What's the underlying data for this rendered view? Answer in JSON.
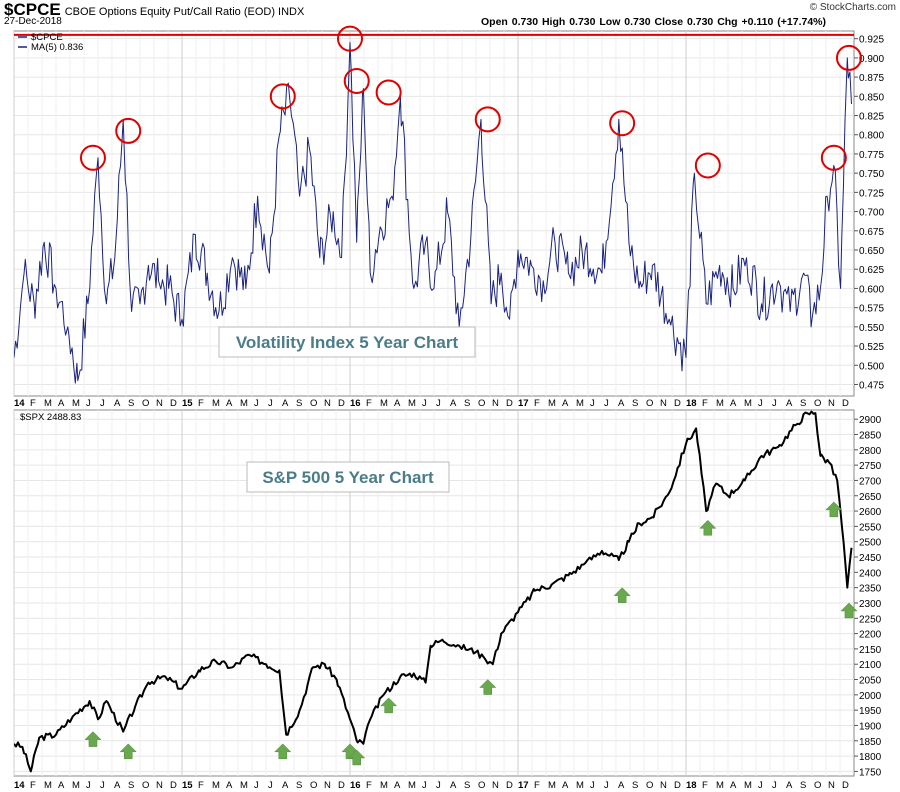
{
  "header": {
    "symbol": "$CPCE",
    "description": "CBOE Options Equity Put/Call Ratio (EOD)  INDX",
    "date": "27-Dec-2018",
    "ohlc": "Open 0.730  High 0.730  Low 0.730  Close 0.730  Chg +0.110 (+17.74%)",
    "watermark": "© StockCharts.com"
  },
  "colors": {
    "cpce_line": "#1a237e",
    "spx_line": "#000000",
    "resistance_line": "#e00000",
    "circle": "#e00000",
    "arrow": "#6aa84f",
    "annotation_text": "#4a7c8a"
  },
  "chart_data": [
    {
      "type": "line",
      "legend": [
        "$CPCE",
        "MA(5) 0.836"
      ],
      "annotation": "Volatility Index 5 Year Chart",
      "ylim": [
        0.46,
        0.935
      ],
      "y_ticks": [
        0.475,
        0.5,
        0.525,
        0.55,
        0.575,
        0.6,
        0.625,
        0.65,
        0.675,
        0.7,
        0.725,
        0.75,
        0.775,
        0.8,
        0.825,
        0.85,
        0.875,
        0.9,
        0.925
      ],
      "y_tick_labels": [
        "0.475",
        "0.500",
        "0.525",
        "0.550",
        "0.575",
        "0.600",
        "0.625",
        "0.650",
        "0.675",
        "0.700",
        "0.725",
        "0.750",
        "0.775",
        "0.800",
        "0.825",
        "0.850",
        "0.875",
        "0.900",
        "0.925"
      ],
      "resistance_level": 0.93,
      "x": [
        2014.0,
        2014.06,
        2014.12,
        2014.18,
        2014.25,
        2014.32,
        2014.38,
        2014.44,
        2014.5,
        2014.55,
        2014.6,
        2014.65,
        2014.7,
        2014.75,
        2014.8,
        2014.86,
        2014.92,
        2015.0,
        2015.08,
        2015.15,
        2015.22,
        2015.3,
        2015.38,
        2015.45,
        2015.52,
        2015.58,
        2015.64,
        2015.7,
        2015.76,
        2015.82,
        2015.9,
        2015.95,
        2016.0,
        2016.04,
        2016.08,
        2016.12,
        2016.18,
        2016.25,
        2016.3,
        2016.38,
        2016.45,
        2016.5,
        2016.58,
        2016.65,
        2016.72,
        2016.78,
        2016.84,
        2016.9,
        2016.95,
        2017.0,
        2017.08,
        2017.15,
        2017.22,
        2017.3,
        2017.4,
        2017.5,
        2017.6,
        2017.66,
        2017.72,
        2017.8,
        2017.9,
        2018.0,
        2018.05,
        2018.12,
        2018.2,
        2018.28,
        2018.36,
        2018.45,
        2018.55,
        2018.62,
        2018.7,
        2018.75,
        2018.8,
        2018.84,
        2018.88,
        2018.92,
        2018.96,
        2018.985
      ],
      "values": [
        0.51,
        0.62,
        0.58,
        0.66,
        0.6,
        0.55,
        0.48,
        0.58,
        0.77,
        0.58,
        0.64,
        0.82,
        0.57,
        0.58,
        0.63,
        0.61,
        0.6,
        0.56,
        0.67,
        0.62,
        0.57,
        0.64,
        0.6,
        0.72,
        0.62,
        0.8,
        0.85,
        0.72,
        0.78,
        0.64,
        0.7,
        0.64,
        0.92,
        0.66,
        0.86,
        0.62,
        0.68,
        0.72,
        0.85,
        0.6,
        0.66,
        0.6,
        0.7,
        0.55,
        0.67,
        0.82,
        0.58,
        0.62,
        0.56,
        0.65,
        0.63,
        0.61,
        0.66,
        0.62,
        0.65,
        0.62,
        0.82,
        0.66,
        0.6,
        0.63,
        0.56,
        0.51,
        0.75,
        0.58,
        0.63,
        0.6,
        0.64,
        0.58,
        0.61,
        0.57,
        0.62,
        0.56,
        0.6,
        0.72,
        0.76,
        0.6,
        0.9,
        0.84
      ],
      "circled_peaks": [
        [
          2014.47,
          0.77
        ],
        [
          2014.68,
          0.805
        ],
        [
          2015.6,
          0.85
        ],
        [
          2016.0,
          0.925
        ],
        [
          2016.04,
          0.87
        ],
        [
          2016.23,
          0.855
        ],
        [
          2016.82,
          0.82
        ],
        [
          2017.62,
          0.815
        ],
        [
          2018.13,
          0.76
        ],
        [
          2018.88,
          0.77
        ],
        [
          2018.97,
          0.9
        ]
      ]
    },
    {
      "type": "line",
      "legend": [
        "$SPX 2488.83"
      ],
      "annotation": "S&P 500 5 Year Chart",
      "ylim": [
        1735,
        2930
      ],
      "y_ticks": [
        1750,
        1800,
        1850,
        1900,
        1950,
        2000,
        2050,
        2100,
        2150,
        2200,
        2250,
        2300,
        2350,
        2400,
        2450,
        2500,
        2550,
        2600,
        2650,
        2700,
        2750,
        2800,
        2850,
        2900
      ],
      "y_tick_labels": [
        "1750",
        "1800",
        "1850",
        "1900",
        "1950",
        "2000",
        "2050",
        "2100",
        "2150",
        "2200",
        "2250",
        "2300",
        "2350",
        "2400",
        "2450",
        "2500",
        "2550",
        "2600",
        "2650",
        "2700",
        "2750",
        "2800",
        "2850",
        "2900"
      ],
      "x": [
        2014.0,
        2014.05,
        2014.1,
        2014.15,
        2014.25,
        2014.35,
        2014.45,
        2014.5,
        2014.55,
        2014.65,
        2014.72,
        2014.8,
        2014.9,
        2015.0,
        2015.1,
        2015.2,
        2015.3,
        2015.4,
        2015.5,
        2015.58,
        2015.62,
        2015.7,
        2015.78,
        2015.85,
        2015.92,
        2016.0,
        2016.04,
        2016.08,
        2016.12,
        2016.2,
        2016.3,
        2016.38,
        2016.45,
        2016.48,
        2016.55,
        2016.65,
        2016.75,
        2016.8,
        2016.85,
        2016.9,
        2017.0,
        2017.1,
        2017.2,
        2017.3,
        2017.4,
        2017.5,
        2017.6,
        2017.66,
        2017.72,
        2017.8,
        2017.9,
        2018.0,
        2018.06,
        2018.12,
        2018.18,
        2018.25,
        2018.35,
        2018.45,
        2018.55,
        2018.65,
        2018.72,
        2018.77,
        2018.8,
        2018.85,
        2018.9,
        2018.93,
        2018.96,
        2018.985
      ],
      "values": [
        1840,
        1830,
        1750,
        1860,
        1870,
        1930,
        1980,
        1920,
        1980,
        1880,
        1960,
        2040,
        2060,
        2020,
        2080,
        2110,
        2090,
        2130,
        2100,
        2080,
        1870,
        1950,
        2090,
        2100,
        2050,
        1920,
        1850,
        1840,
        1920,
        2000,
        2060,
        2070,
        2040,
        2160,
        2180,
        2160,
        2140,
        2120,
        2100,
        2200,
        2270,
        2340,
        2360,
        2390,
        2430,
        2470,
        2440,
        2500,
        2560,
        2580,
        2660,
        2820,
        2870,
        2600,
        2690,
        2650,
        2700,
        2780,
        2810,
        2880,
        2920,
        2920,
        2780,
        2760,
        2700,
        2540,
        2350,
        2480
      ],
      "arrows": [
        [
          2014.47,
          1880
        ],
        [
          2014.68,
          1840
        ],
        [
          2015.6,
          1840
        ],
        [
          2016.0,
          1840
        ],
        [
          2016.04,
          1820
        ],
        [
          2016.23,
          1990
        ],
        [
          2016.82,
          2050
        ],
        [
          2017.62,
          2350
        ],
        [
          2018.13,
          2570
        ],
        [
          2018.88,
          2630
        ],
        [
          2018.97,
          2300
        ]
      ]
    }
  ],
  "x_axis": {
    "labels": [
      {
        "t": "14",
        "x": 2014.0,
        "bold": true
      },
      {
        "t": "F",
        "x": 2014.083
      },
      {
        "t": "M",
        "x": 2014.167
      },
      {
        "t": "A",
        "x": 2014.25
      },
      {
        "t": "M",
        "x": 2014.333
      },
      {
        "t": "J",
        "x": 2014.417
      },
      {
        "t": "J",
        "x": 2014.5
      },
      {
        "t": "A",
        "x": 2014.583
      },
      {
        "t": "S",
        "x": 2014.667
      },
      {
        "t": "O",
        "x": 2014.75
      },
      {
        "t": "N",
        "x": 2014.833
      },
      {
        "t": "D",
        "x": 2014.917
      },
      {
        "t": "15",
        "x": 2015.0,
        "bold": true
      },
      {
        "t": "F",
        "x": 2015.083
      },
      {
        "t": "M",
        "x": 2015.167
      },
      {
        "t": "A",
        "x": 2015.25
      },
      {
        "t": "M",
        "x": 2015.333
      },
      {
        "t": "J",
        "x": 2015.417
      },
      {
        "t": "J",
        "x": 2015.5
      },
      {
        "t": "A",
        "x": 2015.583
      },
      {
        "t": "S",
        "x": 2015.667
      },
      {
        "t": "O",
        "x": 2015.75
      },
      {
        "t": "N",
        "x": 2015.833
      },
      {
        "t": "D",
        "x": 2015.917
      },
      {
        "t": "16",
        "x": 2016.0,
        "bold": true
      },
      {
        "t": "F",
        "x": 2016.083
      },
      {
        "t": "M",
        "x": 2016.167
      },
      {
        "t": "A",
        "x": 2016.25
      },
      {
        "t": "M",
        "x": 2016.333
      },
      {
        "t": "J",
        "x": 2016.417
      },
      {
        "t": "J",
        "x": 2016.5
      },
      {
        "t": "A",
        "x": 2016.583
      },
      {
        "t": "S",
        "x": 2016.667
      },
      {
        "t": "O",
        "x": 2016.75
      },
      {
        "t": "N",
        "x": 2016.833
      },
      {
        "t": "D",
        "x": 2016.917
      },
      {
        "t": "17",
        "x": 2017.0,
        "bold": true
      },
      {
        "t": "F",
        "x": 2017.083
      },
      {
        "t": "M",
        "x": 2017.167
      },
      {
        "t": "A",
        "x": 2017.25
      },
      {
        "t": "M",
        "x": 2017.333
      },
      {
        "t": "J",
        "x": 2017.417
      },
      {
        "t": "J",
        "x": 2017.5
      },
      {
        "t": "A",
        "x": 2017.583
      },
      {
        "t": "S",
        "x": 2017.667
      },
      {
        "t": "O",
        "x": 2017.75
      },
      {
        "t": "N",
        "x": 2017.833
      },
      {
        "t": "D",
        "x": 2017.917
      },
      {
        "t": "18",
        "x": 2018.0,
        "bold": true
      },
      {
        "t": "F",
        "x": 2018.083
      },
      {
        "t": "M",
        "x": 2018.167
      },
      {
        "t": "A",
        "x": 2018.25
      },
      {
        "t": "M",
        "x": 2018.333
      },
      {
        "t": "J",
        "x": 2018.417
      },
      {
        "t": "J",
        "x": 2018.5
      },
      {
        "t": "A",
        "x": 2018.583
      },
      {
        "t": "S",
        "x": 2018.667
      },
      {
        "t": "O",
        "x": 2018.75
      },
      {
        "t": "N",
        "x": 2018.833
      },
      {
        "t": "D",
        "x": 2018.917
      }
    ]
  }
}
